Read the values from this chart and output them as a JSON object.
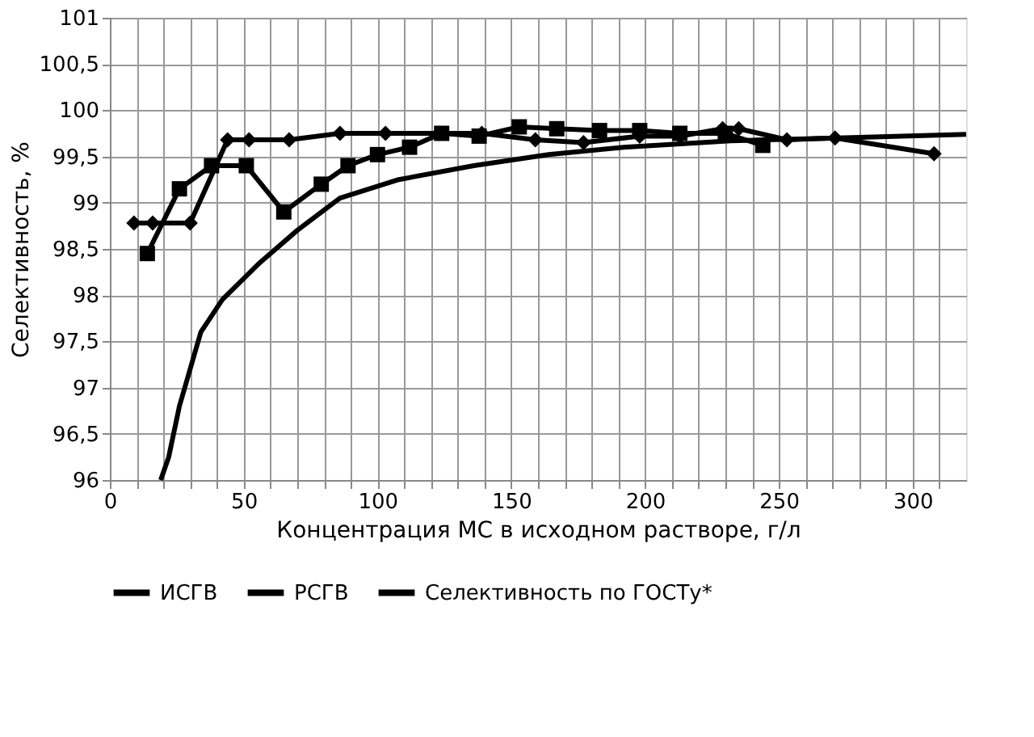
{
  "chart_data": {
    "type": "line",
    "xlabel": "Концентрация  МС в исходном растворе, г/л",
    "ylabel": "Селективность, %",
    "xlim": [
      0,
      320
    ],
    "xticks": [
      0,
      {
        "value": 10,
        "label": null
      },
      {
        "value": 20,
        "label": null
      },
      {
        "value": 30,
        "label": null
      },
      {
        "value": 40,
        "label": null
      },
      50,
      {
        "value": 60,
        "label": null
      },
      {
        "value": 70,
        "label": null
      },
      {
        "value": 80,
        "label": null
      },
      {
        "value": 90,
        "label": null
      },
      100,
      {
        "value": 110,
        "label": null
      },
      {
        "value": 120,
        "label": null
      },
      {
        "value": 130,
        "label": null
      },
      {
        "value": 140,
        "label": null
      },
      150,
      {
        "value": 160,
        "label": null
      },
      {
        "value": 170,
        "label": null
      },
      {
        "value": 180,
        "label": null
      },
      {
        "value": 190,
        "label": null
      },
      200,
      {
        "value": 210,
        "label": null
      },
      {
        "value": 220,
        "label": null
      },
      {
        "value": 230,
        "label": null
      },
      {
        "value": 240,
        "label": null
      },
      250,
      {
        "value": 260,
        "label": null
      },
      {
        "value": 270,
        "label": null
      },
      {
        "value": 280,
        "label": null
      },
      {
        "value": 290,
        "label": null
      },
      300,
      {
        "value": 310,
        "label": null
      }
    ],
    "ylim": [
      96,
      101
    ],
    "yticks": [
      96,
      {
        "value": 96.5,
        "label": "96,5"
      },
      97,
      {
        "value": 97.5,
        "label": "97,5"
      },
      98,
      {
        "value": 98.5,
        "label": "98,5"
      },
      99,
      {
        "value": 99.5,
        "label": "99,5"
      },
      100,
      {
        "value": 100.5,
        "label": "100,5"
      },
      101
    ],
    "grid": true,
    "legend": "bottom",
    "line_style": "solid",
    "series": [
      {
        "name": "ИСГВ",
        "color": "#000000",
        "marker": "diamond",
        "x": [
          9,
          16,
          30,
          44,
          52,
          67,
          86,
          103,
          123,
          139,
          159,
          177,
          198,
          213,
          229,
          235,
          253,
          271,
          308
        ],
        "values": [
          98.78,
          98.78,
          98.78,
          99.68,
          99.68,
          99.68,
          99.75,
          99.75,
          99.75,
          99.75,
          99.68,
          99.65,
          99.72,
          99.72,
          99.8,
          99.8,
          99.68,
          99.7,
          99.53
        ]
      },
      {
        "name": "РСГВ",
        "color": "#000000",
        "marker": "square",
        "x": [
          14,
          26,
          38,
          51,
          65,
          79,
          89,
          100,
          112,
          124,
          138,
          153,
          167,
          183,
          198,
          213,
          230,
          244
        ],
        "values": [
          98.45,
          99.15,
          99.4,
          99.4,
          98.9,
          99.2,
          99.4,
          99.52,
          99.6,
          99.75,
          99.72,
          99.82,
          99.8,
          99.78,
          99.78,
          99.75,
          99.75,
          99.62
        ]
      },
      {
        "name": "Селективность по ГОСТу*",
        "color": "#000000",
        "marker": "none",
        "x": [
          19,
          22,
          26,
          34,
          42,
          56,
          70,
          86,
          108,
          136,
          164,
          192,
          232,
          272,
          320
        ],
        "values": [
          96.0,
          96.25,
          96.8,
          97.6,
          97.95,
          98.35,
          98.7,
          99.05,
          99.25,
          99.4,
          99.52,
          99.6,
          99.67,
          99.7,
          99.74
        ]
      }
    ]
  }
}
